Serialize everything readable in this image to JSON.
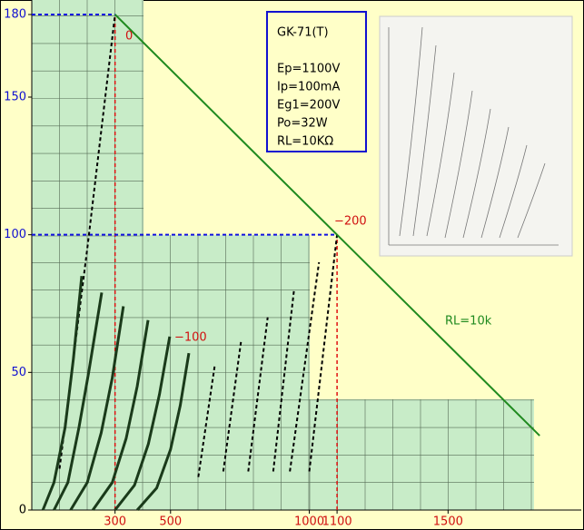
{
  "chart_data": {
    "type": "line",
    "x_label": null,
    "xlim": [
      0,
      1980
    ],
    "ylim": [
      0,
      180
    ],
    "xticks": [
      300,
      500,
      1000,
      1100,
      1500
    ],
    "yticks": [
      0,
      50,
      100,
      150,
      180
    ],
    "load_line": {
      "name": "RL=10k",
      "color": "#1f8a1f",
      "x": [
        300,
        1830
      ],
      "y": [
        180,
        27
      ]
    },
    "operating_lines": [
      {
        "x": 300,
        "y": 180
      },
      {
        "x": 1100,
        "y": 100
      }
    ],
    "series": [
      {
        "color": "#000000",
        "dashed": true,
        "x": [
          100,
          200,
          300
        ],
        "values": [
          15,
          95,
          180
        ]
      },
      {
        "color": "#1a3a1a",
        "dashed": false,
        "x": [
          40,
          80,
          120,
          150,
          180
        ],
        "values": [
          0,
          10,
          30,
          55,
          85
        ]
      },
      {
        "color": "#1a3a1a",
        "dashed": false,
        "x": [
          80,
          130,
          170,
          205,
          252
        ],
        "values": [
          0,
          10,
          30,
          50,
          79
        ]
      },
      {
        "color": "#1a3a1a",
        "dashed": false,
        "x": [
          140,
          200,
          250,
          290,
          330
        ],
        "values": [
          0,
          10,
          28,
          48,
          74
        ]
      },
      {
        "color": "#1a3a1a",
        "dashed": false,
        "x": [
          220,
          290,
          340,
          380,
          419
        ],
        "values": [
          0,
          10,
          26,
          45,
          69
        ]
      },
      {
        "color": "#1a3a1a",
        "dashed": false,
        "x": [
          300,
          370,
          420,
          460,
          497
        ],
        "values": [
          0,
          9,
          24,
          42,
          63
        ]
      },
      {
        "color": "#1a3a1a",
        "dashed": false,
        "x": [
          380,
          450,
          500,
          535,
          566
        ],
        "values": [
          0,
          8,
          22,
          38,
          57
        ]
      },
      {
        "color": "#000000",
        "dashed": true,
        "x": [
          600,
          660
        ],
        "values": [
          12,
          53
        ]
      },
      {
        "color": "#000000",
        "dashed": true,
        "x": [
          690,
          755
        ],
        "values": [
          14,
          62
        ]
      },
      {
        "color": "#000000",
        "dashed": true,
        "x": [
          780,
          850
        ],
        "values": [
          14,
          70
        ]
      },
      {
        "color": "#000000",
        "dashed": true,
        "x": [
          870,
          945
        ],
        "values": [
          14,
          80
        ]
      },
      {
        "color": "#000000",
        "dashed": true,
        "x": [
          930,
          1035
        ],
        "values": [
          14,
          90
        ]
      },
      {
        "color": "#000000",
        "dashed": true,
        "x": [
          1000,
          1100
        ],
        "values": [
          14,
          100
        ]
      }
    ],
    "annotations": [
      "0",
      "−100",
      "−200"
    ],
    "info_box": {
      "title": "GK-71(T)",
      "lines": [
        "Ep=1100V",
        "Ip=100mA",
        "Eg1=200V",
        "Po=32W",
        "RL=10KΩ"
      ]
    }
  }
}
